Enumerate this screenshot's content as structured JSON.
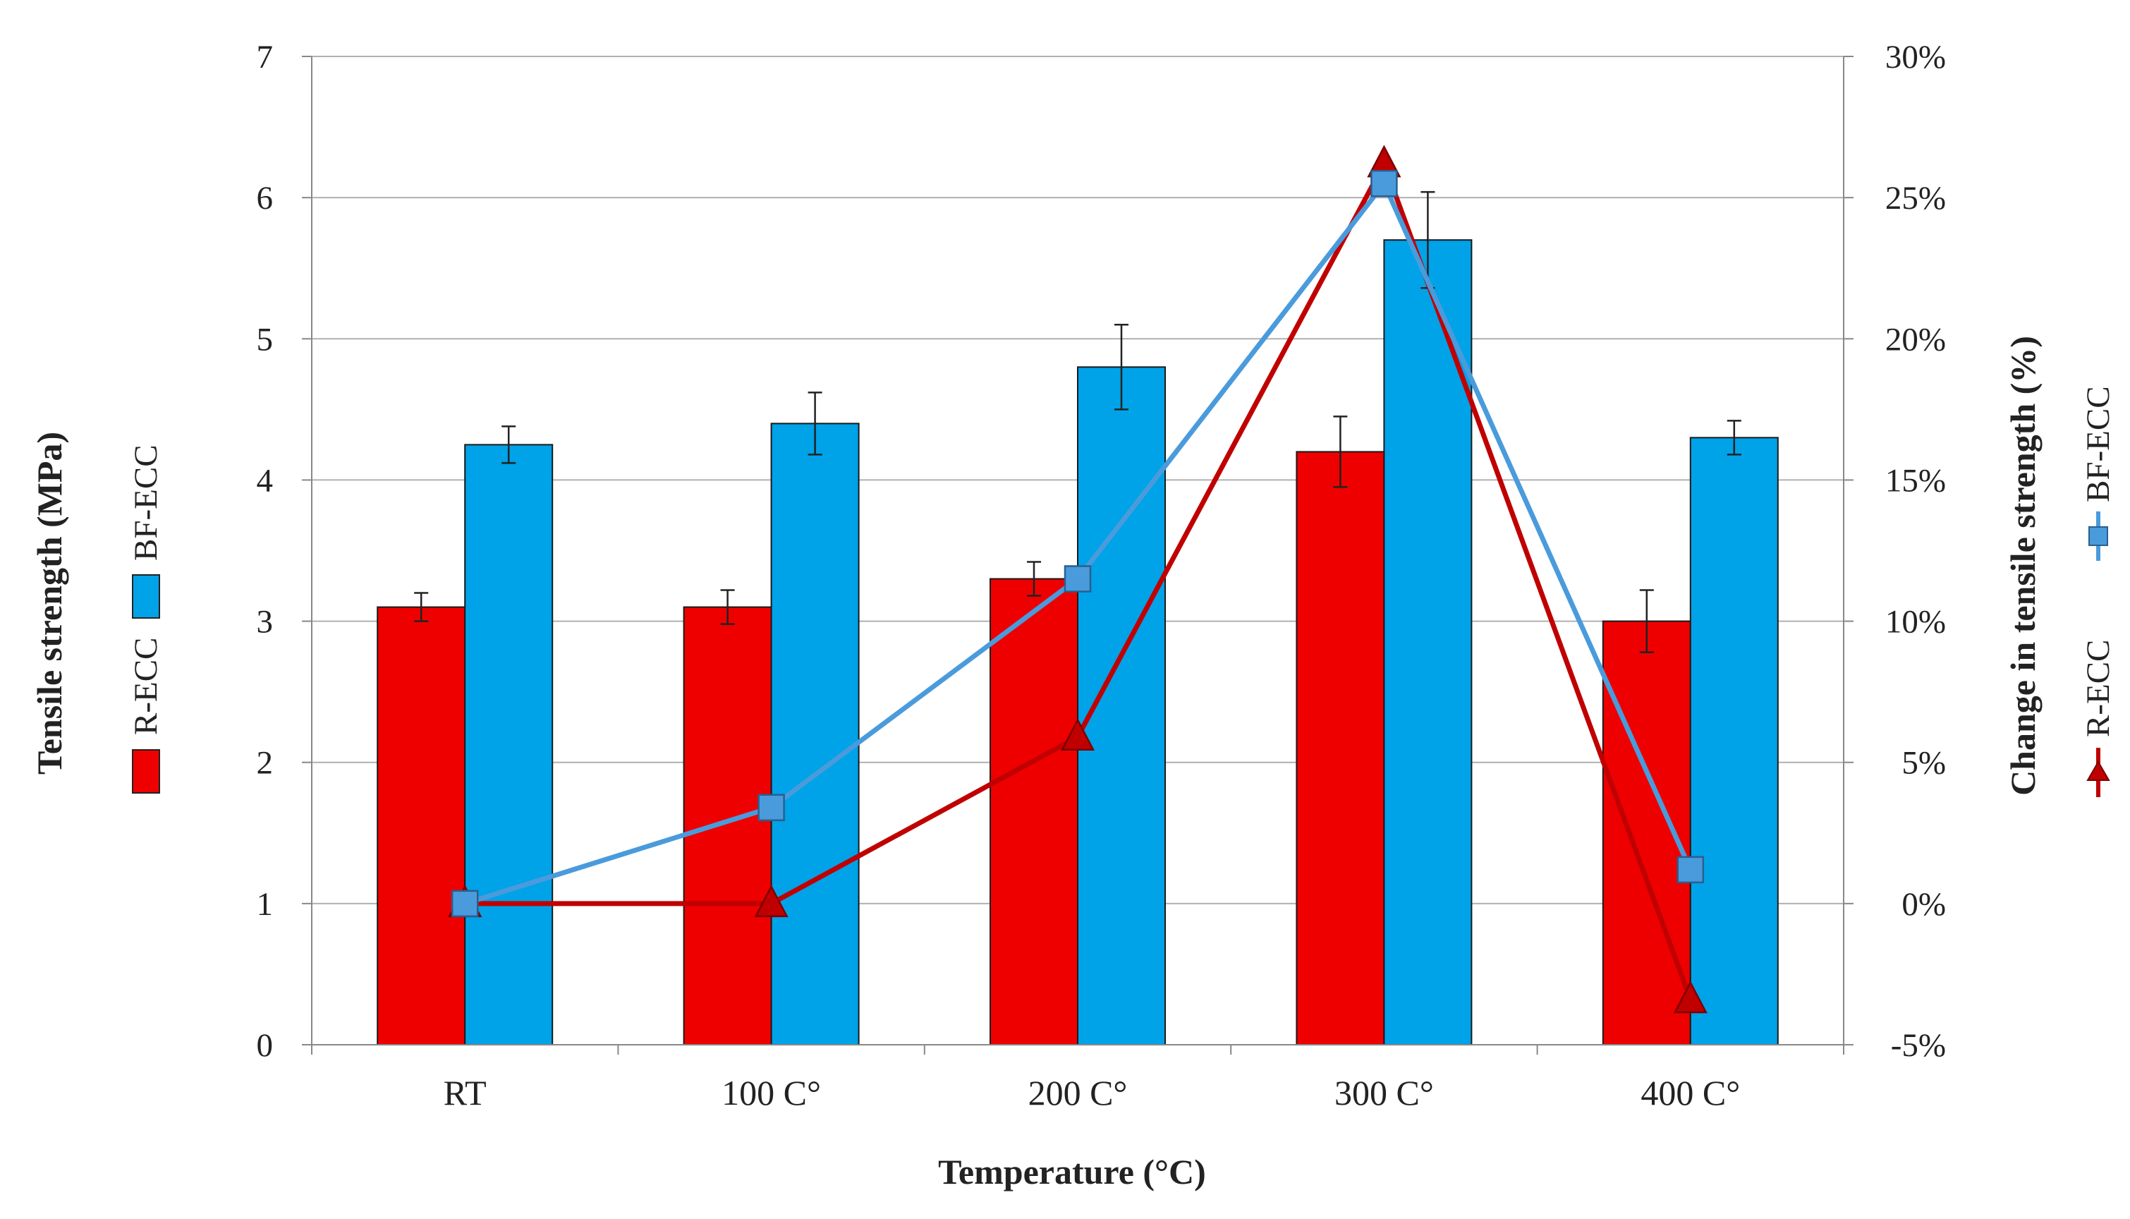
{
  "chart_data": {
    "type": "bar",
    "title": "",
    "xlabel": "Temperature (°C)",
    "ylabel": "Tensile strength (MPa)",
    "y2label": "Change in tensile strength  (%)",
    "categories": [
      "RT",
      "100 C°",
      "200 C°",
      "300 C°",
      "400 C°"
    ],
    "ylim": [
      0,
      7
    ],
    "yticks": [
      "0",
      "1",
      "2",
      "3",
      "4",
      "5",
      "6",
      "7"
    ],
    "y2lim": [
      -5,
      30
    ],
    "y2ticks": [
      "-5%",
      "0%",
      "5%",
      "10%",
      "15%",
      "20%",
      "25%",
      "30%"
    ],
    "grid": true,
    "bar_series": [
      {
        "name": "R-ECC",
        "color": "#ee0000",
        "values": [
          3.1,
          3.1,
          3.3,
          4.2,
          3.0
        ],
        "errors": [
          0.1,
          0.12,
          0.12,
          0.25,
          0.22
        ]
      },
      {
        "name": "BF-ECC",
        "color": "#00a2e8",
        "values": [
          4.25,
          4.4,
          4.8,
          5.7,
          4.3
        ],
        "errors": [
          0.13,
          0.22,
          0.3,
          0.34,
          0.12
        ]
      }
    ],
    "line_series": [
      {
        "name": "R-ECC",
        "color": "#c00000",
        "marker": "triangle",
        "axis": "right",
        "values": [
          0,
          0,
          5.9,
          26.2,
          -3.4
        ]
      },
      {
        "name": "BF-ECC",
        "color": "#4a9bdc",
        "marker": "square",
        "axis": "right",
        "values": [
          0,
          3.4,
          11.5,
          25.5,
          1.2
        ]
      }
    ],
    "legend_left_position": "left, vertical",
    "legend_right_position": "right, vertical"
  }
}
